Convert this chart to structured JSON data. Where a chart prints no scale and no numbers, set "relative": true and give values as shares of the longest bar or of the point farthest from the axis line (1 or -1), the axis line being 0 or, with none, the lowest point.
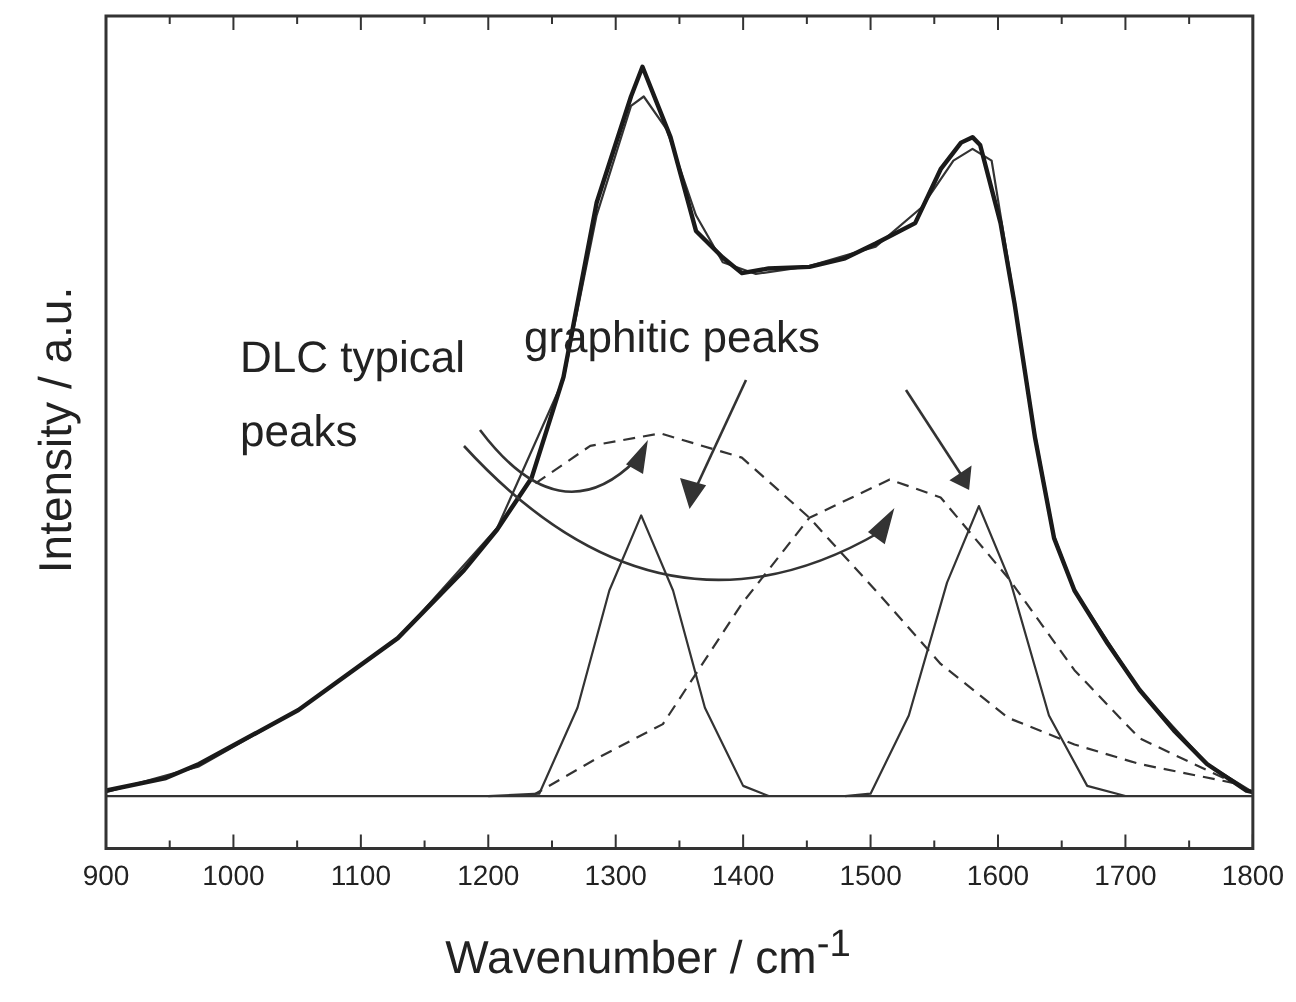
{
  "chart_data": {
    "type": "line",
    "relative": true,
    "xlabel": "Wavenumber / cm$^{-1}$",
    "ylabel": "Intensity / a.u.",
    "xlim": [
      900,
      1800
    ],
    "xticks": [
      900,
      {
        "value": 950,
        "label": null
      },
      1000,
      {
        "value": 1050,
        "label": null
      },
      1100,
      {
        "value": 1150,
        "label": null
      },
      1200,
      {
        "value": 1250,
        "label": null
      },
      1300,
      {
        "value": 1350,
        "label": null
      },
      1400,
      {
        "value": 1450,
        "label": null
      },
      1500,
      {
        "value": 1550,
        "label": null
      },
      1600,
      {
        "value": 1650,
        "label": null
      },
      1700,
      {
        "value": 1750,
        "label": null
      },
      1800
    ],
    "annotations": [
      "DLC typical peaks",
      "graphitic peaks"
    ],
    "series": [
      {
        "color": "#1a1a1a",
        "x": [
          900,
          947,
          973,
          1051,
          1129,
          1181,
          1207,
          1234,
          1259,
          1285,
          1312,
          1321,
          1343,
          1363,
          1384,
          1399,
          1420,
          1452,
          1480,
          1504,
          1535,
          1555,
          1571,
          1580,
          1586,
          1602,
          1613,
          1629,
          1644,
          1660,
          1686,
          1711,
          1738,
          1764,
          1795,
          1800
        ],
        "values": [
          0.074,
          0.09,
          0.108,
          0.177,
          0.269,
          0.356,
          0.408,
          0.474,
          0.603,
          0.826,
          0.962,
          1,
          0.91,
          0.79,
          0.756,
          0.736,
          0.742,
          0.744,
          0.755,
          0.774,
          0.8,
          0.869,
          0.903,
          0.91,
          0.9,
          0.8,
          0.697,
          0.526,
          0.397,
          0.33,
          0.262,
          0.203,
          0.151,
          0.108,
          0.074,
          0.072
        ]
      },
      {
        "color": "#333333",
        "x": [
          900,
          973,
          1051,
          1129,
          1207,
          1259,
          1285,
          1312,
          1322,
          1340,
          1363,
          1384,
          1410,
          1452,
          1504,
          1540,
          1565,
          1580,
          1595,
          1613,
          1629,
          1644,
          1660,
          1711,
          1764,
          1800
        ],
        "values": [
          0.072,
          0.105,
          0.177,
          0.268,
          0.41,
          0.6,
          0.81,
          0.95,
          0.962,
          0.92,
          0.81,
          0.75,
          0.735,
          0.745,
          0.77,
          0.82,
          0.88,
          0.895,
          0.88,
          0.7,
          0.53,
          0.4,
          0.33,
          0.203,
          0.108,
          0.072
        ]
      },
      {
        "color": "#333333",
        "x": [
          900,
          1800
        ],
        "values": [
          0.067,
          0.067
        ]
      },
      {
        "color": "#333333",
        "x": [
          1200,
          1240,
          1270,
          1295,
          1320,
          1345,
          1370,
          1400,
          1420
        ],
        "values": [
          0.067,
          0.07,
          0.18,
          0.33,
          0.426,
          0.33,
          0.18,
          0.08,
          0.067
        ]
      },
      {
        "color": "#333333",
        "x": [
          1480,
          1500,
          1530,
          1560,
          1585,
          1610,
          1640,
          1670,
          1700
        ],
        "values": [
          0.067,
          0.07,
          0.17,
          0.34,
          0.438,
          0.34,
          0.17,
          0.08,
          0.067
        ]
      },
      {
        "color": "#333333",
        "line_style": "dashed",
        "x": [
          1237,
          1280,
          1335,
          1399,
          1452,
          1504,
          1555,
          1608,
          1660,
          1711,
          1790
        ],
        "values": [
          0.467,
          0.515,
          0.531,
          0.5,
          0.423,
          0.33,
          0.236,
          0.167,
          0.133,
          0.108,
          0.082
        ]
      },
      {
        "color": "#333333",
        "line_style": "dashed",
        "x": [
          1234,
          1285,
          1337,
          1399,
          1452,
          1515,
          1555,
          1608,
          1660,
          1711,
          1764,
          1795
        ],
        "values": [
          0.067,
          0.115,
          0.159,
          0.313,
          0.423,
          0.472,
          0.449,
          0.346,
          0.228,
          0.141,
          0.1,
          0.077
        ]
      }
    ]
  }
}
